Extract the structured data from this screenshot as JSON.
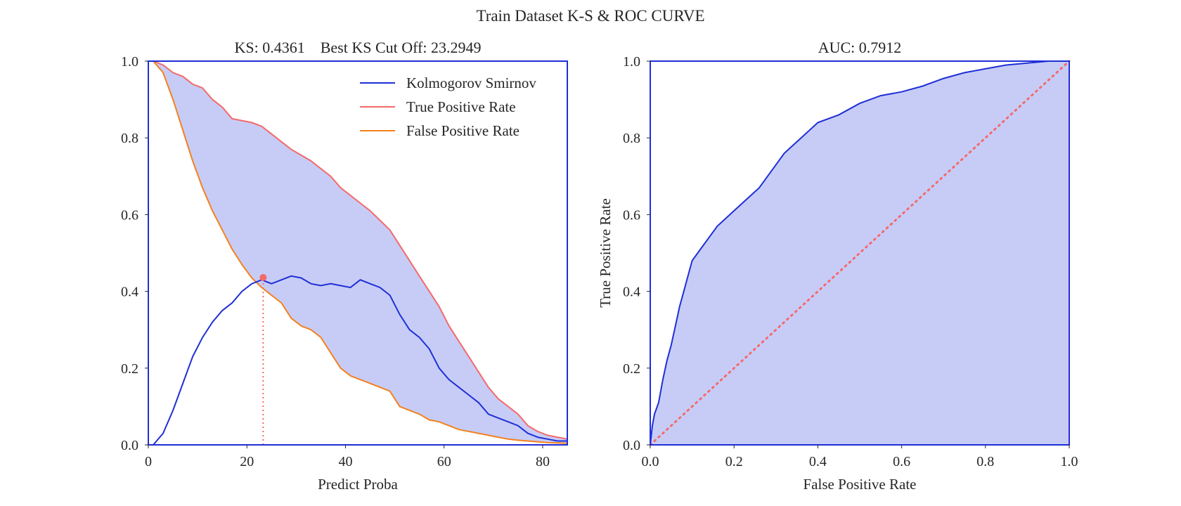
{
  "figure": {
    "suptitle": "Train Dataset K-S & ROC CURVE"
  },
  "colors": {
    "axes": "#1f2fd6",
    "ks": "#1f2fd6",
    "tpr": "#f46a6a",
    "fpr": "#f5801e",
    "fill": "#c7ccf7",
    "diagonal": "#f46a6a",
    "cutoff_marker": "#f46a6a"
  },
  "chart_data": [
    {
      "type": "line",
      "title": "KS: 0.4361    Best KS Cut Off: 23.2949",
      "xlabel": "Predict Proba",
      "ylabel": "",
      "xlim": [
        0,
        85
      ],
      "ylim": [
        0,
        1
      ],
      "xticks": [
        "0",
        "20",
        "40",
        "60",
        "80"
      ],
      "yticks": [
        "0.0",
        "0.2",
        "0.4",
        "0.6",
        "0.8",
        "1.0"
      ],
      "grid": false,
      "legend": [
        "Kolmogorov Smirnov",
        "True Positive Rate",
        "False Positive Rate"
      ],
      "legend_position": "top-right",
      "fill_between": [
        "True Positive Rate",
        "False Positive Rate"
      ],
      "ks": 0.4361,
      "best_cutoff": 23.2949,
      "series": [
        {
          "name": "True Positive Rate",
          "x": [
            1,
            3,
            5,
            7,
            9,
            11,
            13,
            15,
            17,
            19,
            21,
            23,
            25,
            27,
            29,
            31,
            33,
            35,
            37,
            39,
            41,
            43,
            45,
            47,
            49,
            51,
            53,
            55,
            57,
            59,
            61,
            63,
            65,
            67,
            69,
            71,
            73,
            75,
            77,
            79,
            81,
            83,
            85
          ],
          "y": [
            1.0,
            0.99,
            0.97,
            0.96,
            0.94,
            0.93,
            0.9,
            0.88,
            0.85,
            0.845,
            0.84,
            0.83,
            0.81,
            0.79,
            0.77,
            0.755,
            0.74,
            0.72,
            0.7,
            0.67,
            0.65,
            0.63,
            0.61,
            0.585,
            0.56,
            0.52,
            0.48,
            0.44,
            0.4,
            0.36,
            0.31,
            0.27,
            0.23,
            0.19,
            0.15,
            0.12,
            0.1,
            0.08,
            0.05,
            0.035,
            0.025,
            0.02,
            0.015
          ]
        },
        {
          "name": "False Positive Rate",
          "x": [
            1,
            3,
            5,
            7,
            9,
            11,
            13,
            15,
            17,
            19,
            21,
            23,
            25,
            27,
            29,
            31,
            33,
            35,
            37,
            39,
            41,
            43,
            45,
            47,
            49,
            51,
            53,
            55,
            57,
            59,
            61,
            63,
            65,
            67,
            69,
            71,
            73,
            75,
            77,
            79,
            81,
            83,
            85
          ],
          "y": [
            1.0,
            0.97,
            0.9,
            0.82,
            0.74,
            0.67,
            0.61,
            0.56,
            0.51,
            0.47,
            0.435,
            0.41,
            0.39,
            0.37,
            0.33,
            0.31,
            0.3,
            0.28,
            0.24,
            0.2,
            0.18,
            0.17,
            0.16,
            0.15,
            0.14,
            0.1,
            0.09,
            0.08,
            0.065,
            0.06,
            0.05,
            0.04,
            0.035,
            0.03,
            0.025,
            0.02,
            0.015,
            0.012,
            0.01,
            0.008,
            0.006,
            0.005,
            0.004
          ]
        },
        {
          "name": "Kolmogorov Smirnov",
          "x": [
            1,
            3,
            5,
            7,
            9,
            11,
            13,
            15,
            17,
            19,
            21,
            23,
            25,
            27,
            29,
            31,
            33,
            35,
            37,
            39,
            41,
            43,
            45,
            47,
            49,
            51,
            53,
            55,
            57,
            59,
            61,
            63,
            65,
            67,
            69,
            71,
            73,
            75,
            77,
            79,
            81,
            83,
            85
          ],
          "y": [
            0.0,
            0.03,
            0.09,
            0.16,
            0.23,
            0.28,
            0.32,
            0.35,
            0.37,
            0.4,
            0.42,
            0.43,
            0.42,
            0.43,
            0.44,
            0.435,
            0.42,
            0.415,
            0.42,
            0.415,
            0.41,
            0.43,
            0.42,
            0.41,
            0.39,
            0.34,
            0.3,
            0.28,
            0.25,
            0.2,
            0.17,
            0.15,
            0.13,
            0.11,
            0.08,
            0.07,
            0.06,
            0.05,
            0.03,
            0.02,
            0.015,
            0.01,
            0.01
          ]
        }
      ]
    },
    {
      "type": "area",
      "title": "AUC: 0.7912",
      "xlabel": "False Positive Rate",
      "ylabel": "True Positive Rate",
      "xlim": [
        0,
        1
      ],
      "ylim": [
        0,
        1
      ],
      "xticks": [
        "0.0",
        "0.2",
        "0.4",
        "0.6",
        "0.8",
        "1.0"
      ],
      "yticks": [
        "0.0",
        "0.2",
        "0.4",
        "0.6",
        "0.8",
        "1.0"
      ],
      "grid": false,
      "auc": 0.7912,
      "series": [
        {
          "name": "ROC",
          "x": [
            0.0,
            0.005,
            0.01,
            0.02,
            0.03,
            0.04,
            0.05,
            0.06,
            0.07,
            0.08,
            0.09,
            0.1,
            0.12,
            0.14,
            0.16,
            0.18,
            0.2,
            0.22,
            0.24,
            0.26,
            0.28,
            0.3,
            0.32,
            0.34,
            0.36,
            0.38,
            0.4,
            0.45,
            0.5,
            0.55,
            0.6,
            0.65,
            0.7,
            0.75,
            0.8,
            0.85,
            0.9,
            0.95,
            1.0
          ],
          "y": [
            0.0,
            0.05,
            0.08,
            0.11,
            0.17,
            0.22,
            0.26,
            0.31,
            0.36,
            0.4,
            0.44,
            0.48,
            0.51,
            0.54,
            0.57,
            0.59,
            0.61,
            0.63,
            0.65,
            0.67,
            0.7,
            0.73,
            0.76,
            0.78,
            0.8,
            0.82,
            0.84,
            0.86,
            0.89,
            0.91,
            0.92,
            0.935,
            0.955,
            0.97,
            0.98,
            0.99,
            0.995,
            1.0,
            1.0
          ]
        },
        {
          "name": "Random",
          "style": "dotted",
          "x": [
            0,
            1
          ],
          "y": [
            0,
            1
          ]
        }
      ]
    }
  ]
}
